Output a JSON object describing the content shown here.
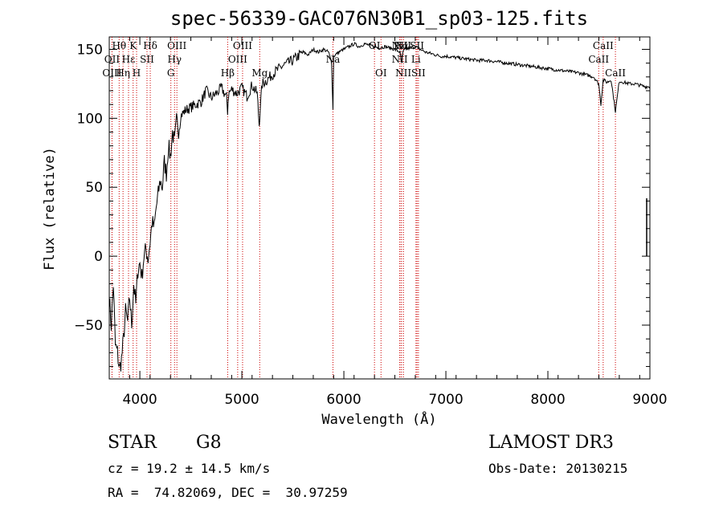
{
  "chart_data": {
    "type": "line",
    "title": "spec-56339-GAC076N30B1_sp03-125.fits",
    "xlabel": "Wavelength (Å)",
    "ylabel": "Flux (relative)",
    "xlim": [
      3700,
      9000
    ],
    "ylim": [
      -89,
      159
    ],
    "xticks": [
      4000,
      5000,
      6000,
      7000,
      8000,
      9000
    ],
    "yticks": [
      -50,
      0,
      50,
      100,
      150
    ],
    "xtick_labels": [
      "4000",
      "5000",
      "6000",
      "7000",
      "8000",
      "9000"
    ],
    "ytick_labels": [
      "−50",
      "0",
      "50",
      "100",
      "150"
    ],
    "series": [
      {
        "name": "spectrum",
        "x": [
          3700,
          3720,
          3740,
          3760,
          3780,
          3800,
          3820,
          3840,
          3860,
          3880,
          3900,
          3920,
          3940,
          3960,
          3980,
          4000,
          4020,
          4040,
          4060,
          4080,
          4100,
          4120,
          4140,
          4160,
          4180,
          4200,
          4220,
          4240,
          4260,
          4280,
          4300,
          4320,
          4340,
          4360,
          4380,
          4400,
          4450,
          4500,
          4550,
          4600,
          4650,
          4700,
          4750,
          4800,
          4850,
          4860,
          4870,
          4900,
          4950,
          5000,
          5050,
          5100,
          5150,
          5170,
          5180,
          5200,
          5250,
          5300,
          5350,
          5400,
          5450,
          5500,
          5550,
          5600,
          5650,
          5700,
          5750,
          5800,
          5850,
          5880,
          5893,
          5900,
          5950,
          6000,
          6050,
          6100,
          6150,
          6200,
          6250,
          6300,
          6350,
          6400,
          6450,
          6500,
          6550,
          6563,
          6580,
          6600,
          6650,
          6700,
          6750,
          6800,
          6850,
          6900,
          6950,
          7000,
          7100,
          7200,
          7300,
          7400,
          7500,
          7600,
          7700,
          7800,
          7900,
          8000,
          8100,
          8200,
          8300,
          8400,
          8450,
          8498,
          8520,
          8542,
          8580,
          8620,
          8662,
          8700,
          8750,
          8800,
          8850,
          8900,
          8950,
          9000
        ],
        "values": [
          -30,
          -50,
          -20,
          -65,
          -70,
          -82,
          -75,
          -60,
          -40,
          -48,
          -30,
          -50,
          -20,
          -35,
          -10,
          -5,
          -15,
          0,
          5,
          -2,
          10,
          25,
          20,
          35,
          45,
          55,
          50,
          68,
          60,
          80,
          72,
          90,
          82,
          98,
          92,
          102,
          106,
          108,
          110,
          112,
          120,
          115,
          118,
          122,
          115,
          105,
          118,
          121,
          118,
          122,
          116,
          124,
          118,
          95,
          108,
          125,
          128,
          132,
          135,
          138,
          140,
          142,
          145,
          148,
          146,
          150,
          148,
          150,
          148,
          140,
          106,
          145,
          148,
          150,
          152,
          154,
          152,
          154,
          153,
          152,
          151,
          152,
          151,
          150,
          148,
          140,
          148,
          150,
          151,
          152,
          150,
          148,
          147,
          146,
          145,
          145,
          144,
          143,
          142,
          142,
          141,
          140,
          139,
          138,
          137,
          136,
          135,
          134,
          133,
          131,
          130,
          125,
          110,
          128,
          126,
          128,
          105,
          127,
          126,
          125,
          125,
          124,
          123,
          123
        ]
      }
    ],
    "spectral_lines": [
      {
        "label": "Hθ",
        "wavelength": 3797,
        "row": 1
      },
      {
        "label": "OII",
        "wavelength": 3727,
        "row": 2
      },
      {
        "label": "OIII",
        "wavelength": 3727,
        "row": 3
      },
      {
        "label": "Hε",
        "wavelength": 3889,
        "row": 2
      },
      {
        "label": "Hη",
        "wavelength": 3835,
        "row": 3
      },
      {
        "label": "K",
        "wavelength": 3934,
        "row": 1
      },
      {
        "label": "SII",
        "wavelength": 4070,
        "row": 2
      },
      {
        "label": "H",
        "wavelength": 3968,
        "row": 3
      },
      {
        "label": "Hδ",
        "wavelength": 4102,
        "row": 1
      },
      {
        "label": "OIII",
        "wavelength": 4363,
        "row": 1
      },
      {
        "label": "Hγ",
        "wavelength": 4340,
        "row": 2
      },
      {
        "label": "G",
        "wavelength": 4304,
        "row": 3
      },
      {
        "label": "OIII",
        "wavelength": 5007,
        "row": 1
      },
      {
        "label": "OIII",
        "wavelength": 4959,
        "row": 2
      },
      {
        "label": "Hβ",
        "wavelength": 4861,
        "row": 3
      },
      {
        "label": "Mg",
        "wavelength": 5175,
        "row": 3
      },
      {
        "label": "Na",
        "wavelength": 5893,
        "row": 2
      },
      {
        "label": "OI",
        "wavelength": 6300,
        "row": 1
      },
      {
        "label": "OI",
        "wavelength": 6364,
        "row": 3
      },
      {
        "label": "NII",
        "wavelength": 6548,
        "row": 1
      },
      {
        "label": "Hα",
        "wavelength": 6563,
        "row": 1
      },
      {
        "label": "NII",
        "wavelength": 6583,
        "row": 1
      },
      {
        "label": "SII",
        "wavelength": 6717,
        "row": 1
      },
      {
        "label": "NII",
        "wavelength": 6548,
        "row": 2
      },
      {
        "label": "Li",
        "wavelength": 6707,
        "row": 2
      },
      {
        "label": "NII",
        "wavelength": 6583,
        "row": 3
      },
      {
        "label": "SII",
        "wavelength": 6731,
        "row": 3
      },
      {
        "label": "CaII",
        "wavelength": 8542,
        "row": 1
      },
      {
        "label": "CaII",
        "wavelength": 8498,
        "row": 2
      },
      {
        "label": "CaII",
        "wavelength": 8662,
        "row": 3
      }
    ],
    "line_color": "#000000",
    "marker_line_color": "#cc0000"
  },
  "info": {
    "object_class": "STAR",
    "subclass": "G8",
    "survey": "LAMOST DR3",
    "cz": "cz = 19.2 ± 14.5 km/s",
    "obs_date": "Obs-Date: 20130215",
    "coords": "RA =  74.82069, DEC =  30.97259"
  }
}
